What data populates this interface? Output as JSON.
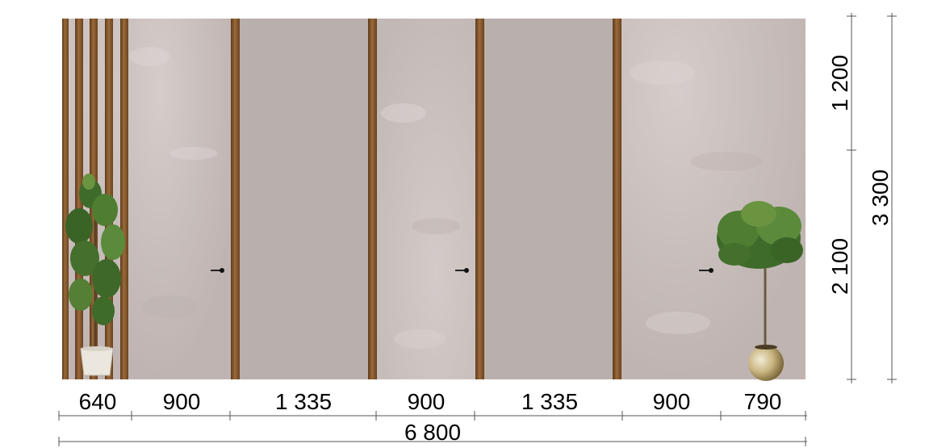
{
  "dimensions": {
    "horizontal_segments": [
      "640",
      "900",
      "1 335",
      "900",
      "1 335",
      "900",
      "790"
    ],
    "total_width": "6 800",
    "vertical_segments": [
      "1 200",
      "2 100"
    ],
    "total_height": "3 300"
  },
  "colors": {
    "wall": "#c8bebc",
    "wall_light": "#d4cbc9",
    "door": "#b6aeab",
    "wood_strip": "#7a4e26",
    "wood_strip_light": "#9a6a3a",
    "handle": "#111111",
    "foliage": "#3f6b2a",
    "foliage_light": "#6a9440",
    "pot_white": "#e8e4dc",
    "pot_gold": "#b8a46a"
  },
  "elements": {
    "slats_left": "wood-slat-panel",
    "doors": [
      "hidden-door",
      "hidden-door"
    ],
    "plants": [
      "potted-ficus",
      "topiary-tree"
    ]
  }
}
